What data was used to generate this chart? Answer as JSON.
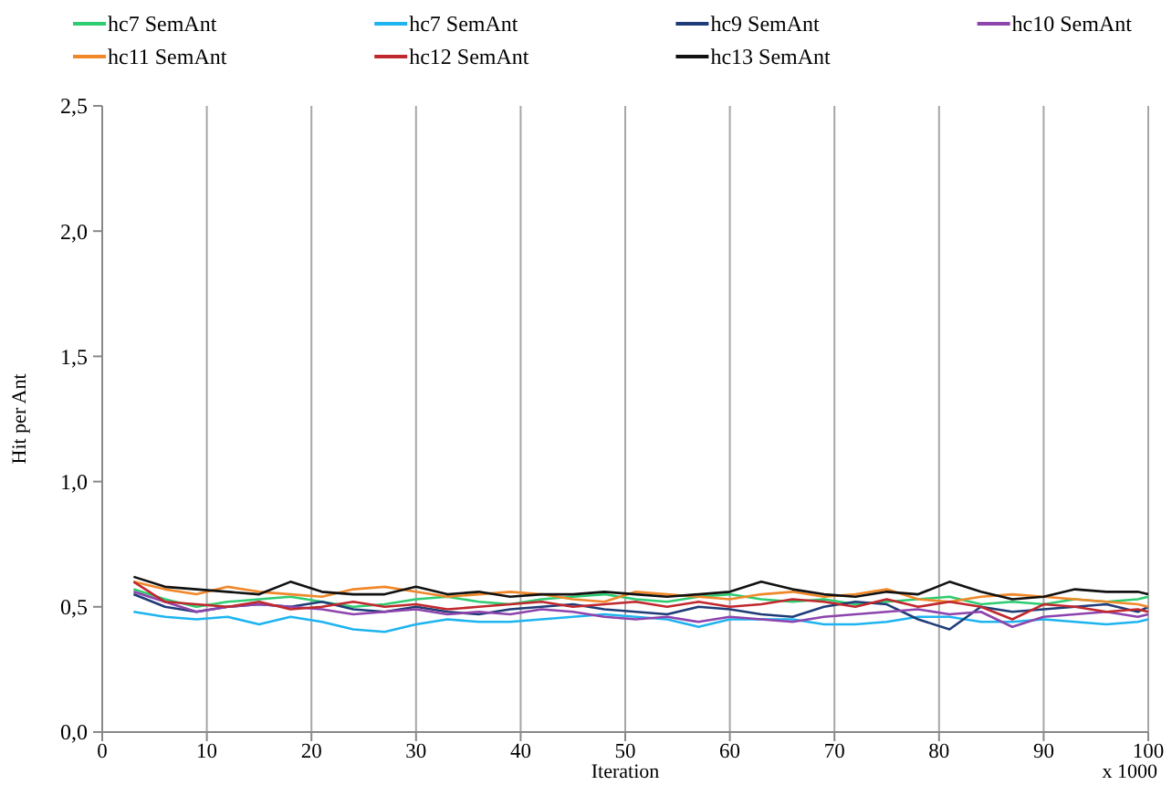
{
  "chart_data": {
    "type": "line",
    "xlabel": "Iteration",
    "ylabel": "Hit per Ant",
    "annotations": [
      "x 1000"
    ],
    "x": [
      3,
      6,
      9,
      12,
      15,
      18,
      21,
      24,
      27,
      30,
      33,
      36,
      39,
      42,
      45,
      48,
      51,
      54,
      57,
      60,
      63,
      66,
      69,
      72,
      75,
      78,
      81,
      84,
      87,
      90,
      93,
      96,
      99,
      100
    ],
    "series": [
      {
        "name": "hc7 SemAnt",
        "color": "#2ecc71",
        "values": [
          0.57,
          0.53,
          0.5,
          0.52,
          0.53,
          0.54,
          0.52,
          0.5,
          0.51,
          0.53,
          0.54,
          0.52,
          0.51,
          0.53,
          0.54,
          0.55,
          0.53,
          0.52,
          0.54,
          0.55,
          0.53,
          0.52,
          0.53,
          0.51,
          0.52,
          0.53,
          0.54,
          0.51,
          0.52,
          0.51,
          0.53,
          0.52,
          0.53,
          0.54
        ]
      },
      {
        "name": "hc7 SemAnt",
        "color": "#1eb4f0",
        "values": [
          0.48,
          0.46,
          0.45,
          0.46,
          0.43,
          0.46,
          0.44,
          0.41,
          0.4,
          0.43,
          0.45,
          0.44,
          0.44,
          0.45,
          0.46,
          0.47,
          0.46,
          0.45,
          0.42,
          0.45,
          0.45,
          0.45,
          0.43,
          0.43,
          0.44,
          0.46,
          0.46,
          0.44,
          0.44,
          0.45,
          0.44,
          0.43,
          0.44,
          0.45
        ]
      },
      {
        "name": "hc9 SemAnt",
        "color": "#1f3c78",
        "values": [
          0.55,
          0.5,
          0.48,
          0.5,
          0.51,
          0.5,
          0.52,
          0.49,
          0.48,
          0.5,
          0.48,
          0.47,
          0.49,
          0.5,
          0.51,
          0.49,
          0.48,
          0.47,
          0.5,
          0.49,
          0.47,
          0.46,
          0.5,
          0.52,
          0.51,
          0.45,
          0.41,
          0.5,
          0.48,
          0.49,
          0.5,
          0.51,
          0.48,
          0.5
        ]
      },
      {
        "name": "hc10 SemAnt",
        "color": "#8e44ad",
        "values": [
          0.56,
          0.52,
          0.48,
          0.5,
          0.51,
          0.5,
          0.49,
          0.47,
          0.48,
          0.49,
          0.47,
          0.48,
          0.47,
          0.49,
          0.48,
          0.46,
          0.45,
          0.46,
          0.44,
          0.46,
          0.45,
          0.44,
          0.46,
          0.47,
          0.48,
          0.49,
          0.47,
          0.48,
          0.42,
          0.46,
          0.47,
          0.48,
          0.46,
          0.47
        ]
      },
      {
        "name": "hc11 SemAnt",
        "color": "#f0882a",
        "values": [
          0.6,
          0.57,
          0.55,
          0.58,
          0.56,
          0.55,
          0.54,
          0.57,
          0.58,
          0.56,
          0.54,
          0.55,
          0.56,
          0.55,
          0.53,
          0.52,
          0.56,
          0.55,
          0.54,
          0.53,
          0.55,
          0.56,
          0.54,
          0.55,
          0.57,
          0.53,
          0.52,
          0.54,
          0.55,
          0.54,
          0.53,
          0.52,
          0.51,
          0.5
        ]
      },
      {
        "name": "hc12 SemAnt",
        "color": "#c0282d",
        "values": [
          0.6,
          0.52,
          0.51,
          0.5,
          0.52,
          0.49,
          0.5,
          0.52,
          0.5,
          0.51,
          0.49,
          0.5,
          0.51,
          0.52,
          0.5,
          0.51,
          0.52,
          0.5,
          0.52,
          0.5,
          0.51,
          0.53,
          0.52,
          0.5,
          0.53,
          0.5,
          0.52,
          0.5,
          0.45,
          0.51,
          0.5,
          0.48,
          0.49,
          0.48
        ]
      },
      {
        "name": "hc13 SemAnt",
        "color": "#111111",
        "values": [
          0.62,
          0.58,
          0.57,
          0.56,
          0.55,
          0.6,
          0.56,
          0.55,
          0.55,
          0.58,
          0.55,
          0.56,
          0.54,
          0.55,
          0.55,
          0.56,
          0.55,
          0.54,
          0.55,
          0.56,
          0.6,
          0.57,
          0.55,
          0.54,
          0.56,
          0.55,
          0.6,
          0.56,
          0.53,
          0.54,
          0.57,
          0.56,
          0.56,
          0.55
        ]
      }
    ],
    "xlim": [
      0,
      100
    ],
    "xticks": [
      0,
      10,
      20,
      30,
      40,
      50,
      60,
      70,
      80,
      90,
      100
    ],
    "ylim": [
      0,
      2.5
    ],
    "yticks": [
      {
        "value": 0,
        "label": "0,0"
      },
      {
        "value": 0.5,
        "label": "0,5"
      },
      {
        "value": 1,
        "label": "1,0"
      },
      {
        "value": 1.5,
        "label": "1,5"
      },
      {
        "value": 2,
        "label": "2,0"
      },
      {
        "value": 2.5,
        "label": "2,5"
      }
    ],
    "grid": "x",
    "legend": "top",
    "marker": "none",
    "line_style": "solid"
  }
}
